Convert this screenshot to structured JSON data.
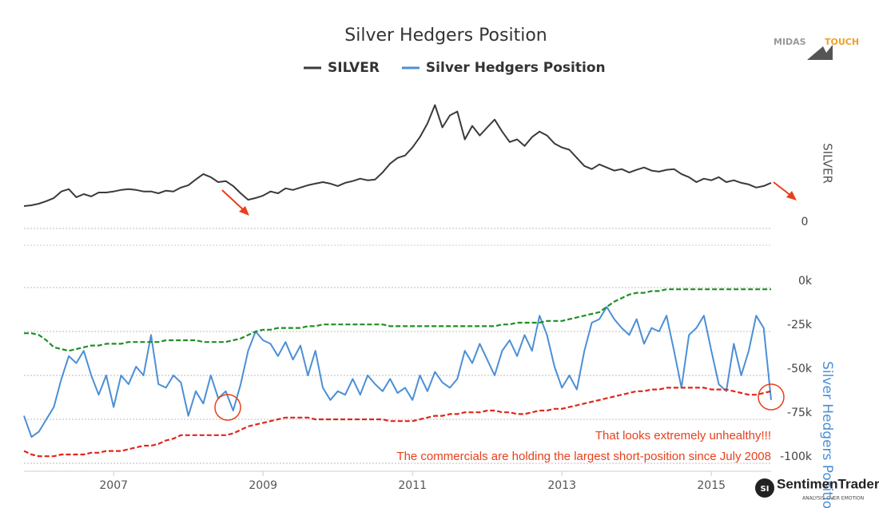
{
  "chart_data": [
    {
      "type": "line",
      "title": "Silver Hedgers Position",
      "y_label": "SILVER",
      "xlim": [
        2005.8,
        2015.8
      ],
      "ylim": [
        0,
        50
      ],
      "yticks": [
        0
      ],
      "grid": true,
      "x": [
        2005.8,
        2005.9,
        2006.0,
        2006.1,
        2006.2,
        2006.3,
        2006.4,
        2006.5,
        2006.6,
        2006.7,
        2006.8,
        2006.9,
        2007.0,
        2007.1,
        2007.2,
        2007.3,
        2007.4,
        2007.5,
        2007.6,
        2007.7,
        2007.8,
        2007.9,
        2008.0,
        2008.1,
        2008.2,
        2008.3,
        2008.4,
        2008.5,
        2008.6,
        2008.7,
        2008.8,
        2008.9,
        2009.0,
        2009.1,
        2009.2,
        2009.3,
        2009.4,
        2009.5,
        2009.6,
        2009.7,
        2009.8,
        2009.9,
        2010.0,
        2010.1,
        2010.2,
        2010.3,
        2010.4,
        2010.5,
        2010.6,
        2010.7,
        2010.8,
        2010.9,
        2011.0,
        2011.1,
        2011.2,
        2011.3,
        2011.4,
        2011.5,
        2011.6,
        2011.7,
        2011.8,
        2011.9,
        2012.0,
        2012.1,
        2012.2,
        2012.3,
        2012.4,
        2012.5,
        2012.6,
        2012.7,
        2012.8,
        2012.9,
        2013.0,
        2013.1,
        2013.2,
        2013.3,
        2013.4,
        2013.5,
        2013.6,
        2013.7,
        2013.8,
        2013.9,
        2014.0,
        2014.1,
        2014.2,
        2014.3,
        2014.4,
        2014.5,
        2014.6,
        2014.7,
        2014.8,
        2014.9,
        2015.0,
        2015.1,
        2015.2,
        2015.3,
        2015.4,
        2015.5,
        2015.6,
        2015.7,
        2015.8
      ],
      "series": [
        {
          "name": "SILVER",
          "color": "#3a3a3a",
          "values": [
            8.6,
            8.9,
            9.5,
            10.5,
            11.7,
            14.2,
            15.1,
            12,
            13.2,
            12.3,
            13.8,
            13.8,
            14.2,
            14.8,
            15.1,
            14.8,
            14.2,
            14.2,
            13.5,
            14.5,
            14.2,
            15.7,
            16.6,
            18.8,
            20.9,
            19.7,
            17.8,
            18.2,
            16.3,
            13.5,
            11,
            11.7,
            12.6,
            14.2,
            13.5,
            15.4,
            14.8,
            15.7,
            16.6,
            17.2,
            17.8,
            17.2,
            16.3,
            17.5,
            18.2,
            19.1,
            18.5,
            18.8,
            21.5,
            24.9,
            27.1,
            28,
            31.1,
            35.1,
            40.3,
            47.4,
            38.8,
            43.4,
            44.9,
            34.2,
            39.4,
            35.7,
            38.8,
            41.8,
            37.2,
            33.2,
            34.2,
            31.7,
            35.1,
            37.2,
            35.7,
            32.6,
            31.1,
            30.2,
            27.1,
            24,
            22.8,
            24.6,
            23.4,
            22.2,
            22.8,
            21.5,
            22.5,
            23.4,
            22.2,
            21.8,
            22.5,
            22.8,
            20.9,
            19.7,
            17.8,
            19.1,
            18.5,
            19.7,
            17.8,
            18.5,
            17.5,
            16.9,
            15.7,
            16.3,
            17.5
          ]
        }
      ]
    },
    {
      "type": "line",
      "y_label": "Silver Hedgers Position",
      "y_label_color": "#4b8fd6",
      "xlim": [
        2005.8,
        2015.8
      ],
      "xticks": [
        2007,
        2009,
        2011,
        2013,
        2015
      ],
      "ylim": [
        -100000,
        0
      ],
      "grid": true,
      "yticks": [
        {
          "value": 0,
          "label": "0k"
        },
        {
          "value": -25000,
          "label": "-25k"
        },
        {
          "value": -50000,
          "label": "-50k"
        },
        {
          "value": -75000,
          "label": "-75k"
        },
        {
          "value": -100000,
          "label": "-100k"
        }
      ],
      "annotations": [
        "That looks extremely unhealthy!!!",
        "The commercials are holding the largest short-position since July 2008"
      ],
      "annotation_color": "#e8401c",
      "x": [
        2005.8,
        2005.9,
        2006.0,
        2006.1,
        2006.2,
        2006.3,
        2006.4,
        2006.5,
        2006.6,
        2006.7,
        2006.8,
        2006.9,
        2007.0,
        2007.1,
        2007.2,
        2007.3,
        2007.4,
        2007.5,
        2007.6,
        2007.7,
        2007.8,
        2007.9,
        2008.0,
        2008.1,
        2008.2,
        2008.3,
        2008.4,
        2008.5,
        2008.6,
        2008.7,
        2008.8,
        2008.9,
        2009.0,
        2009.1,
        2009.2,
        2009.3,
        2009.4,
        2009.5,
        2009.6,
        2009.7,
        2009.8,
        2009.9,
        2010.0,
        2010.1,
        2010.2,
        2010.3,
        2010.4,
        2010.5,
        2010.6,
        2010.7,
        2010.8,
        2010.9,
        2011.0,
        2011.1,
        2011.2,
        2011.3,
        2011.4,
        2011.5,
        2011.6,
        2011.7,
        2011.8,
        2011.9,
        2012.0,
        2012.1,
        2012.2,
        2012.3,
        2012.4,
        2012.5,
        2012.6,
        2012.7,
        2012.8,
        2012.9,
        2013.0,
        2013.1,
        2013.2,
        2013.3,
        2013.4,
        2013.5,
        2013.6,
        2013.7,
        2013.8,
        2013.9,
        2014.0,
        2014.1,
        2014.2,
        2014.3,
        2014.4,
        2014.5,
        2014.6,
        2014.7,
        2014.8,
        2014.9,
        2015.0,
        2015.1,
        2015.2,
        2015.3,
        2015.4,
        2015.5,
        2015.6,
        2015.7,
        2015.8
      ],
      "series": [
        {
          "name": "Silver Hedgers Position",
          "color": "#4b8fd6",
          "values": [
            -73000,
            -85000,
            -82000,
            -75000,
            -68000,
            -52000,
            -39000,
            -43000,
            -36000,
            -50000,
            -61000,
            -50000,
            -68000,
            -50000,
            -55000,
            -45000,
            -50000,
            -27000,
            -55000,
            -57000,
            -50000,
            -54000,
            -73000,
            -59000,
            -66000,
            -50000,
            -63000,
            -59000,
            -70000,
            -55000,
            -36000,
            -25000,
            -30000,
            -32000,
            -39000,
            -31000,
            -41000,
            -33000,
            -50000,
            -36000,
            -57000,
            -64000,
            -59000,
            -61000,
            -52000,
            -61000,
            -50000,
            -55000,
            -59000,
            -52000,
            -60000,
            -57000,
            -64000,
            -50000,
            -59000,
            -48000,
            -54000,
            -57000,
            -52000,
            -36000,
            -43000,
            -32000,
            -41000,
            -50000,
            -36000,
            -30000,
            -39000,
            -27000,
            -36000,
            -16000,
            -27000,
            -45000,
            -57000,
            -50000,
            -58000,
            -36000,
            -20000,
            -18000,
            -11000,
            -18000,
            -23000,
            -27000,
            -18000,
            -32000,
            -23000,
            -25000,
            -16000,
            -36000,
            -57000,
            -27000,
            -23000,
            -16000,
            -36000,
            -55000,
            -59000,
            -32000,
            -50000,
            -36000,
            -16000,
            -23000,
            -64000
          ]
        },
        {
          "color": "#1f8f24",
          "dash": true,
          "values": [
            -26000,
            -26000,
            -27000,
            -30000,
            -34000,
            -35000,
            -36000,
            -35000,
            -34000,
            -33000,
            -33000,
            -32000,
            -32000,
            -32000,
            -31000,
            -31000,
            -31000,
            -31000,
            -31000,
            -30000,
            -30000,
            -30000,
            -30000,
            -30000,
            -31000,
            -31000,
            -31000,
            -31000,
            -30000,
            -29000,
            -27000,
            -25000,
            -24000,
            -24000,
            -23000,
            -23000,
            -23000,
            -23000,
            -22000,
            -22000,
            -21000,
            -21000,
            -21000,
            -21000,
            -21000,
            -21000,
            -21000,
            -21000,
            -21000,
            -22000,
            -22000,
            -22000,
            -22000,
            -22000,
            -22000,
            -22000,
            -22000,
            -22000,
            -22000,
            -22000,
            -22000,
            -22000,
            -22000,
            -22000,
            -21000,
            -21000,
            -20000,
            -20000,
            -20000,
            -20000,
            -19000,
            -19000,
            -19000,
            -18000,
            -17000,
            -16000,
            -15000,
            -14000,
            -11000,
            -8000,
            -6000,
            -4000,
            -3000,
            -3000,
            -2000,
            -2000,
            -1000,
            -1000,
            -1000,
            -1000,
            -1000,
            -1000,
            -1000,
            -1000,
            -1000,
            -1000,
            -1000,
            -1000,
            -1000,
            -1000,
            -1000
          ]
        },
        {
          "color": "#e0261b",
          "dash": true,
          "values": [
            -93000,
            -95000,
            -96000,
            -96000,
            -96000,
            -95000,
            -95000,
            -95000,
            -95000,
            -94000,
            -94000,
            -93000,
            -93000,
            -93000,
            -92000,
            -91000,
            -90000,
            -90000,
            -89000,
            -87000,
            -86000,
            -84000,
            -84000,
            -84000,
            -84000,
            -84000,
            -84000,
            -84000,
            -83000,
            -81000,
            -79000,
            -78000,
            -77000,
            -76000,
            -75000,
            -74000,
            -74000,
            -74000,
            -74000,
            -75000,
            -75000,
            -75000,
            -75000,
            -75000,
            -75000,
            -75000,
            -75000,
            -75000,
            -75000,
            -76000,
            -76000,
            -76000,
            -76000,
            -75000,
            -74000,
            -73000,
            -73000,
            -72000,
            -72000,
            -71000,
            -71000,
            -71000,
            -70000,
            -70000,
            -71000,
            -71000,
            -72000,
            -72000,
            -71000,
            -70000,
            -70000,
            -69000,
            -69000,
            -68000,
            -67000,
            -66000,
            -65000,
            -64000,
            -63000,
            -62000,
            -61000,
            -60000,
            -59000,
            -59000,
            -58000,
            -58000,
            -57000,
            -57000,
            -57000,
            -57000,
            -57000,
            -57000,
            -58000,
            -58000,
            -58000,
            -59000,
            -60000,
            -61000,
            -61000,
            -60000,
            -59000
          ]
        }
      ]
    }
  ],
  "logos": [
    "MIDAS",
    "TOUCH",
    "SentimenTrader",
    "ANALYSIS OVER EMOTION"
  ]
}
